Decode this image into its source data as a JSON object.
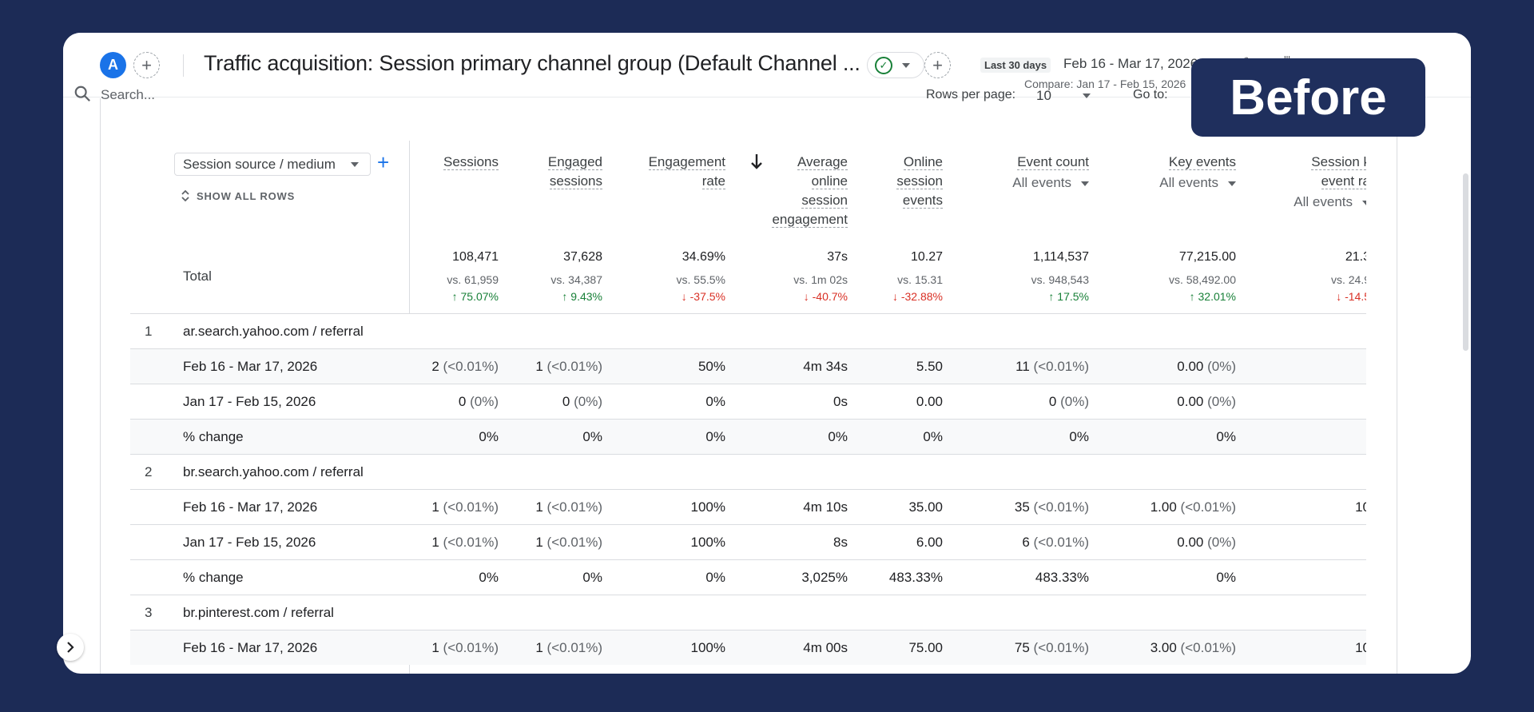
{
  "header": {
    "avatar_letter": "A",
    "title": "Traffic acquisition: Session primary channel group (Default Channel ...",
    "date_tag": "Last 30 days",
    "date_range": "Feb 16 - Mar 17, 2026",
    "compare": "Compare: Jan 17 - Feb 15, 2026"
  },
  "badge": "Before",
  "toolbar": {
    "search_placeholder": "Search...",
    "rows_per_page_label": "Rows per page:",
    "rows_per_page_value": "10",
    "goto_label": "Go to:"
  },
  "dimension": {
    "select_label": "Session source / medium",
    "show_all": "SHOW ALL ROWS",
    "total_label": "Total"
  },
  "columns": [
    {
      "id": "sessions",
      "lines": [
        "Sessions"
      ],
      "sub": ""
    },
    {
      "id": "engaged",
      "lines": [
        "Engaged",
        "sessions"
      ],
      "sub": ""
    },
    {
      "id": "engrate",
      "lines": [
        "Engagement",
        "rate"
      ],
      "sub": ""
    },
    {
      "id": "avgeng",
      "lines": [
        "Average",
        "online",
        "session",
        "engagement"
      ],
      "sub": ""
    },
    {
      "id": "online",
      "lines": [
        "Online",
        "session",
        "events"
      ],
      "sub": ""
    },
    {
      "id": "eventcount",
      "lines": [
        "Event count"
      ],
      "sub": "All events"
    },
    {
      "id": "keyevents",
      "lines": [
        "Key events"
      ],
      "sub": "All events"
    },
    {
      "id": "sessionkey",
      "lines": [
        "Session k",
        "event ra"
      ],
      "sub": "All events"
    }
  ],
  "totals": [
    {
      "v": "108,471",
      "vs": "vs. 61,959",
      "ch": "75.07%",
      "dir": "up"
    },
    {
      "v": "37,628",
      "vs": "vs. 34,387",
      "ch": "9.43%",
      "dir": "up"
    },
    {
      "v": "34.69%",
      "vs": "vs. 55.5%",
      "ch": "-37.5%",
      "dir": "down"
    },
    {
      "v": "37s",
      "vs": "vs. 1m 02s",
      "ch": "-40.7%",
      "dir": "down"
    },
    {
      "v": "10.27",
      "vs": "vs. 15.31",
      "ch": "-32.88%",
      "dir": "down"
    },
    {
      "v": "1,114,537",
      "vs": "vs. 948,543",
      "ch": "17.5%",
      "dir": "up"
    },
    {
      "v": "77,215.00",
      "vs": "vs. 58,492.00",
      "ch": "32.01%",
      "dir": "up"
    },
    {
      "v": "21.3",
      "vs": "vs. 24.9",
      "ch": "-14.5",
      "dir": "down"
    }
  ],
  "rows": [
    {
      "type": "group",
      "num": "1",
      "label": "ar.search.yahoo.com / referral",
      "cells": []
    },
    {
      "type": "sub",
      "label": "Feb 16 - Mar 17, 2026",
      "cells": [
        [
          "2",
          "(<0.01%)"
        ],
        [
          "1",
          "(<0.01%)"
        ],
        [
          "50%",
          ""
        ],
        [
          "4m 34s",
          ""
        ],
        [
          "5.50",
          ""
        ],
        [
          "11",
          "(<0.01%)"
        ],
        [
          "0.00",
          "(0%)"
        ],
        [
          "",
          ""
        ]
      ]
    },
    {
      "type": "plain",
      "label": "Jan 17 - Feb 15, 2026",
      "cells": [
        [
          "0",
          "(0%)"
        ],
        [
          "0",
          "(0%)"
        ],
        [
          "0%",
          ""
        ],
        [
          "0s",
          ""
        ],
        [
          "0.00",
          ""
        ],
        [
          "0",
          "(0%)"
        ],
        [
          "0.00",
          "(0%)"
        ],
        [
          "",
          ""
        ]
      ]
    },
    {
      "type": "sub",
      "label": "% change",
      "cells": [
        [
          "0%",
          ""
        ],
        [
          "0%",
          ""
        ],
        [
          "0%",
          ""
        ],
        [
          "0%",
          ""
        ],
        [
          "0%",
          ""
        ],
        [
          "0%",
          ""
        ],
        [
          "0%",
          ""
        ],
        [
          "",
          ""
        ]
      ]
    },
    {
      "type": "group",
      "num": "2",
      "label": "br.search.yahoo.com / referral",
      "cells": []
    },
    {
      "type": "plain",
      "label": "Feb 16 - Mar 17, 2026",
      "cells": [
        [
          "1",
          "(<0.01%)"
        ],
        [
          "1",
          "(<0.01%)"
        ],
        [
          "100%",
          ""
        ],
        [
          "4m 10s",
          ""
        ],
        [
          "35.00",
          ""
        ],
        [
          "35",
          "(<0.01%)"
        ],
        [
          "1.00",
          "(<0.01%)"
        ],
        [
          "10",
          ""
        ]
      ]
    },
    {
      "type": "plain",
      "label": "Jan 17 - Feb 15, 2026",
      "cells": [
        [
          "1",
          "(<0.01%)"
        ],
        [
          "1",
          "(<0.01%)"
        ],
        [
          "100%",
          ""
        ],
        [
          "8s",
          ""
        ],
        [
          "6.00",
          ""
        ],
        [
          "6",
          "(<0.01%)"
        ],
        [
          "0.00",
          "(0%)"
        ],
        [
          "",
          ""
        ]
      ]
    },
    {
      "type": "plain",
      "label": "% change",
      "cells": [
        [
          "0%",
          ""
        ],
        [
          "0%",
          ""
        ],
        [
          "0%",
          ""
        ],
        [
          "3,025%",
          ""
        ],
        [
          "483.33%",
          ""
        ],
        [
          "483.33%",
          ""
        ],
        [
          "0%",
          ""
        ],
        [
          "",
          ""
        ]
      ]
    },
    {
      "type": "group",
      "num": "3",
      "label": "br.pinterest.com / referral",
      "cells": []
    },
    {
      "type": "sub",
      "label": "Feb 16 - Mar 17, 2026",
      "cells": [
        [
          "1",
          "(<0.01%)"
        ],
        [
          "1",
          "(<0.01%)"
        ],
        [
          "100%",
          ""
        ],
        [
          "4m 00s",
          ""
        ],
        [
          "75.00",
          ""
        ],
        [
          "75",
          "(<0.01%)"
        ],
        [
          "3.00",
          "(<0.01%)"
        ],
        [
          "10",
          ""
        ]
      ]
    }
  ],
  "colors": {
    "background": "#1c2b56",
    "accent": "#1a73e8",
    "up": "#188038",
    "down": "#d93025"
  }
}
